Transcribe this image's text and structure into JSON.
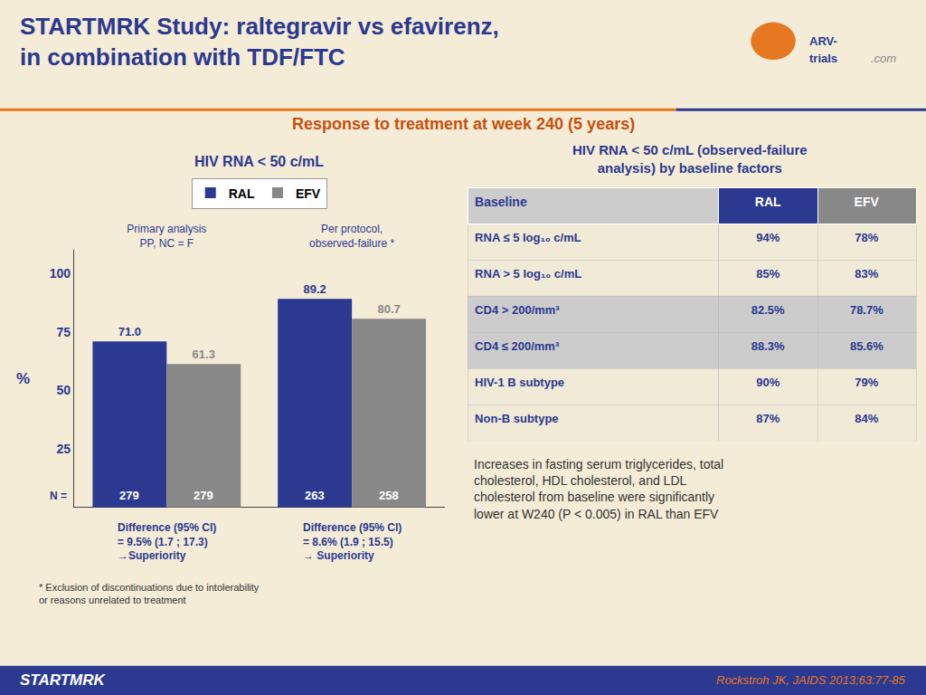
{
  "title": "STARTMRK Study: raltegravir vs efavirenz,\nin combination with TDF/FTC",
  "subtitle": "Response to treatment at week 240 (5 years)",
  "logo": [
    "ARV-",
    "trials",
    ".com"
  ],
  "chart_data": {
    "type": "bar",
    "title": "HIV RNA < 50 c/mL",
    "categories": [
      "Primary analysis\nPP, NC = F",
      "Per protocol,\nobserved-failure *"
    ],
    "series": [
      {
        "name": "RAL",
        "color": "#2B3990",
        "values": [
          71.0,
          89.2
        ],
        "value_labels": [
          "71.0",
          "89.2"
        ],
        "n": [
          279,
          263
        ]
      },
      {
        "name": "EFV",
        "color": "#888888",
        "values": [
          61.3,
          80.7
        ],
        "value_labels": [
          "61.3",
          "80.7"
        ],
        "n": [
          279,
          258
        ]
      }
    ],
    "ylabel": "%",
    "ylim": [
      0,
      110
    ],
    "yticks": [
      25,
      50,
      75,
      100
    ],
    "grid": false,
    "legend": "top",
    "data_labels": true,
    "n_label": "N =",
    "annotations": [
      {
        "category": "Primary analysis\nPP, NC = F",
        "text": "Difference (95% CI)\n= 9.5% (1.7 ; 17.3)\n→Superiority"
      },
      {
        "category": "Per protocol,\nobserved-failure *",
        "text": "Difference (95% CI)\n= 8.6% (1.9 ; 15.5)\n→ Superiority"
      }
    ],
    "footnote": "* Exclusion of discontinuations due to intolerability\nor reasons unrelated to treatment"
  },
  "table": {
    "title": "HIV RNA < 50 c/mL (observed-failure\nanalysis) by baseline factors",
    "columns": [
      "Baseline",
      "RAL",
      "EFV"
    ],
    "rows": [
      [
        "RNA ≤ 5 log₁₀ c/mL",
        "94%",
        "78%"
      ],
      [
        "RNA > 5 log₁₀ c/mL",
        "85%",
        "83%"
      ],
      [
        "CD4 > 200/mm³",
        "82.5%",
        "78.7%"
      ],
      [
        "CD4 ≤ 200/mm³",
        "88.3%",
        "85.6%"
      ],
      [
        "HIV-1 B subtype",
        "90%",
        "79%"
      ],
      [
        "Non-B subtype",
        "87%",
        "84%"
      ]
    ]
  },
  "side_note": "Increases in fasting serum triglycerides, total\ncholesterol, HDL cholesterol, and LDL\ncholesterol from baseline were significantly\nlower at W240 (P < 0.005) in RAL than EFV",
  "footer": {
    "left": "STARTMRK",
    "right": "Rockstroh JK, JAIDS 2013;63:77-85"
  }
}
